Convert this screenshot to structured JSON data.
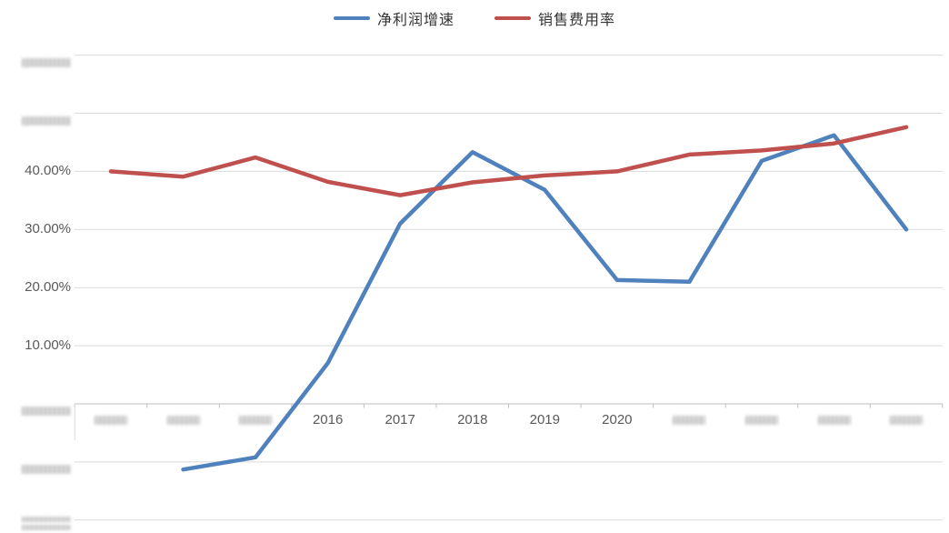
{
  "legend": {
    "items": [
      {
        "label": "净利润增速",
        "color": "#4F81BD"
      },
      {
        "label": "销售费用率",
        "color": "#C0504D"
      }
    ]
  },
  "chart_data": {
    "type": "line",
    "title": "",
    "legend_position": "top",
    "grid": true,
    "x_ticks": [
      {
        "label": "",
        "redacted": true
      },
      {
        "label": "",
        "redacted": true
      },
      {
        "label": "",
        "redacted": true
      },
      {
        "label": "2016",
        "redacted": false
      },
      {
        "label": "2017",
        "redacted": false
      },
      {
        "label": "2018",
        "redacted": false
      },
      {
        "label": "2019",
        "redacted": false
      },
      {
        "label": "2020",
        "redacted": false
      },
      {
        "label": "",
        "redacted": true
      },
      {
        "label": "",
        "redacted": true
      },
      {
        "label": "",
        "redacted": true
      },
      {
        "label": "",
        "redacted": true
      }
    ],
    "series": [
      {
        "name": "净利润增速",
        "color": "#4F81BD",
        "values": [
          null,
          -11.3,
          -9.2,
          7,
          31,
          43.3,
          36.8,
          21.3,
          21,
          41.8,
          46.2,
          30
        ]
      },
      {
        "name": "销售费用率",
        "color": "#C0504D",
        "values": [
          40,
          39.1,
          42.4,
          38.2,
          35.9,
          38.1,
          39.3,
          40,
          42.9,
          43.6,
          44.8,
          47.6
        ]
      }
    ],
    "y_axis": {
      "min": -20,
      "max": 60,
      "step": 10,
      "unit": "%",
      "ticks": [
        {
          "value": 60,
          "label": "",
          "redacted": true,
          "smudge_lines": 1
        },
        {
          "value": 50,
          "label": "",
          "redacted": true,
          "smudge_lines": 1
        },
        {
          "value": 40,
          "label": "40.00%",
          "redacted": false
        },
        {
          "value": 30,
          "label": "30.00%",
          "redacted": false
        },
        {
          "value": 20,
          "label": "20.00%",
          "redacted": false
        },
        {
          "value": 10,
          "label": "10.00%",
          "redacted": false
        },
        {
          "value": 0,
          "label": "",
          "redacted": true,
          "smudge_lines": 1
        },
        {
          "value": -10,
          "label": "",
          "redacted": true,
          "smudge_lines": 1
        },
        {
          "value": -20,
          "label": "",
          "redacted": true,
          "smudge_lines": 2
        }
      ]
    }
  }
}
